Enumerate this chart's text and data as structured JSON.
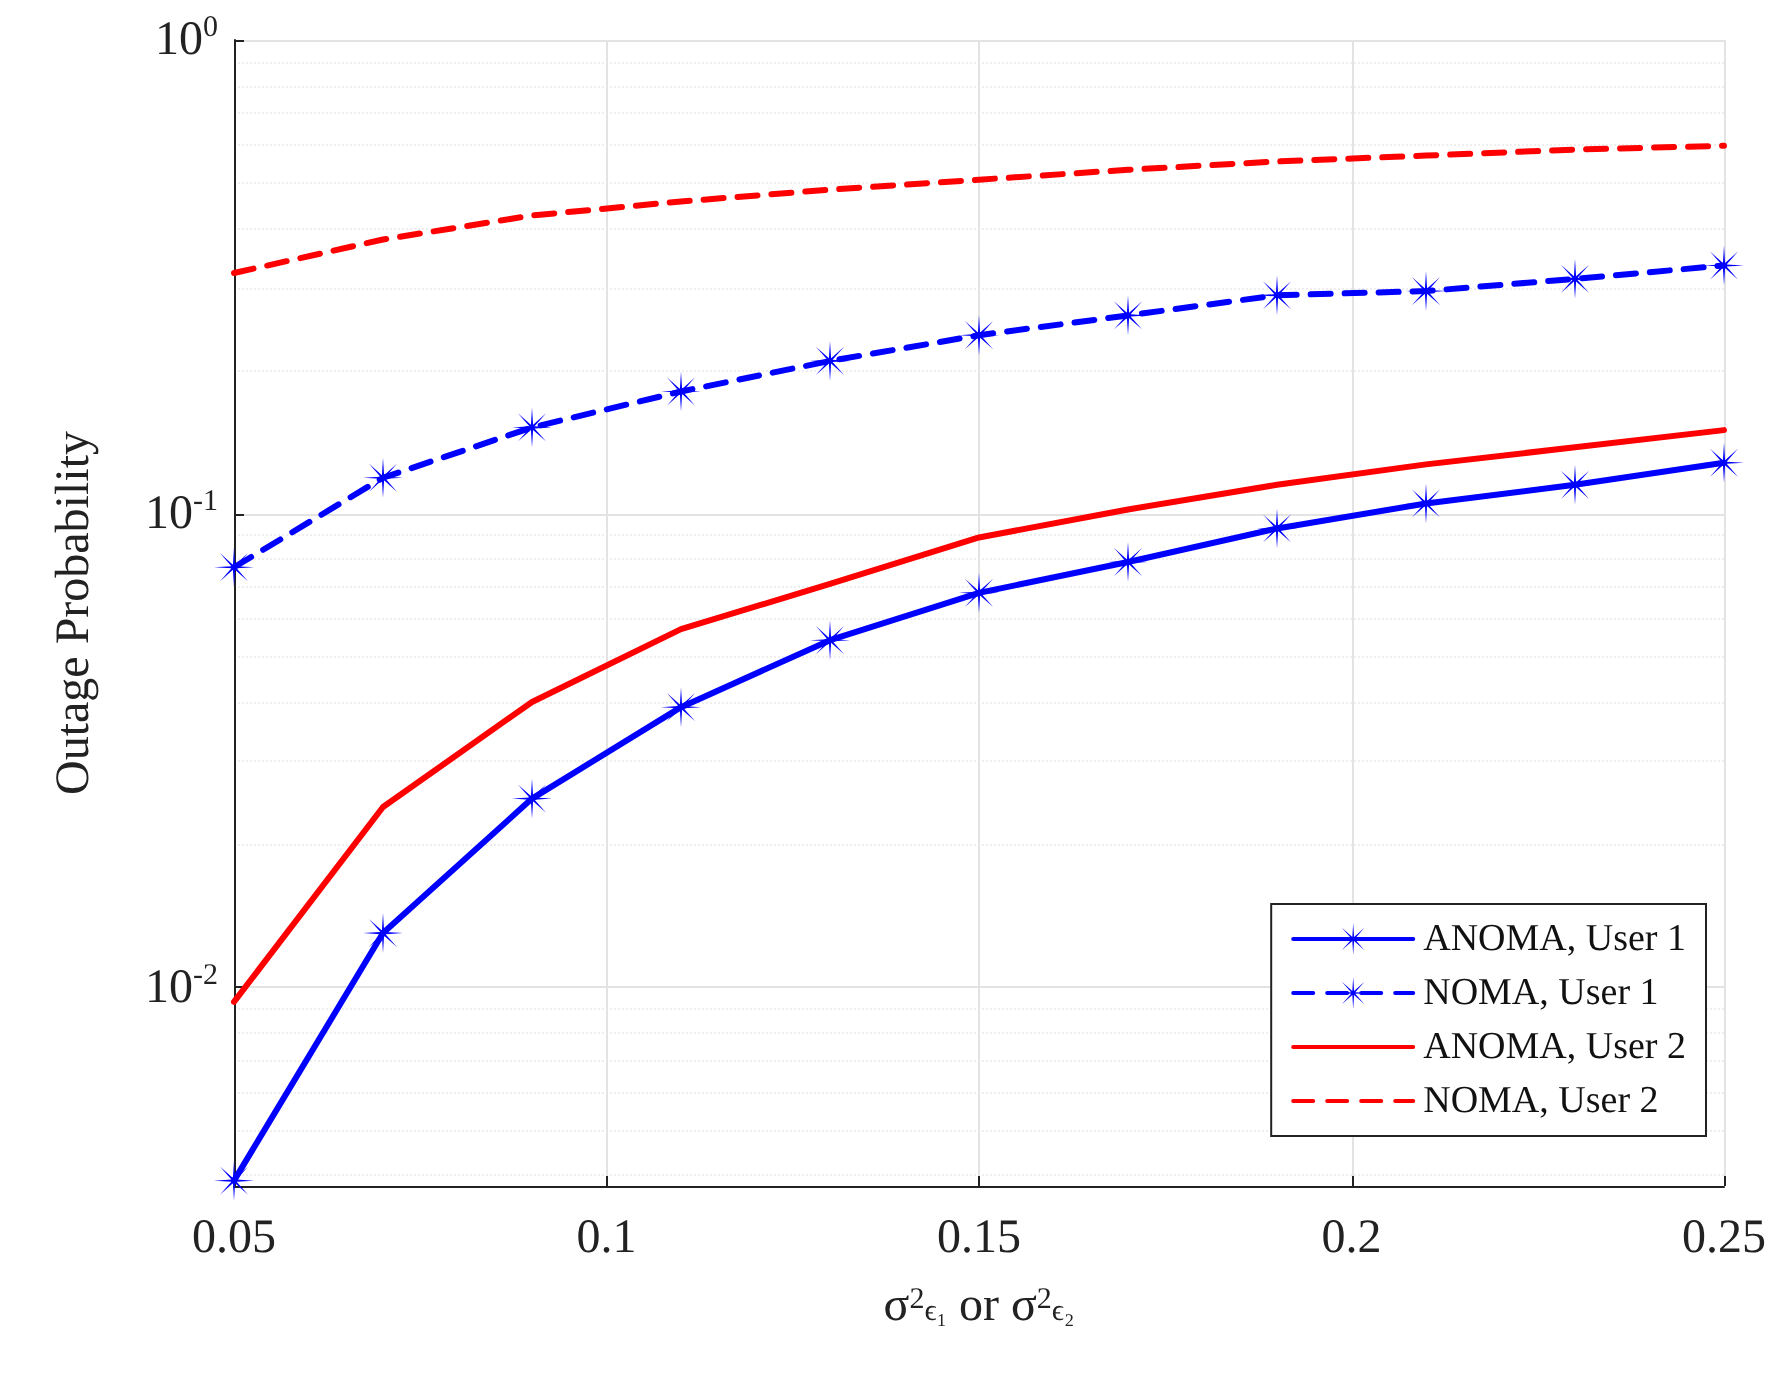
{
  "chart_data": {
    "type": "line",
    "xlabel": "σ$^{2}$$_{ϵ₁}$ or σ$^{2}$$_{ϵ₂}$",
    "ylabel": "Outage Probability",
    "x": [
      0.05,
      0.07,
      0.09,
      0.11,
      0.13,
      0.15,
      0.17,
      0.19,
      0.21,
      0.23,
      0.25
    ],
    "xlim": [
      0.05,
      0.25
    ],
    "xticks": [
      0.05,
      0.1,
      0.15,
      0.2,
      0.25
    ],
    "ylim": [
      0.0038,
      1
    ],
    "yticks": [
      {
        "value": 0.01,
        "label": "10$^{-2}$"
      },
      {
        "value": 0.1,
        "label": "10$^{-1}$"
      },
      {
        "value": 1,
        "label": "10$^{0}$"
      }
    ],
    "log": "y",
    "grid": true,
    "legend": "bottom right",
    "series": [
      {
        "name": "ANOMA, User 1",
        "color": "#0000ff",
        "marker": "star",
        "line_style": "solid",
        "values": [
          0.0039,
          0.013,
          0.025,
          0.039,
          0.054,
          0.068,
          0.079,
          0.093,
          0.105,
          0.115,
          0.128
        ]
      },
      {
        "name": "NOMA, User 1",
        "color": "#0000ff",
        "marker": "star",
        "line_style": "dashed",
        "values": [
          0.077,
          0.119,
          0.152,
          0.181,
          0.21,
          0.238,
          0.262,
          0.289,
          0.295,
          0.313,
          0.334
        ]
      },
      {
        "name": "ANOMA, User 2",
        "color": "#ff0000",
        "marker": "none",
        "line_style": "solid",
        "values": [
          0.0093,
          0.024,
          0.04,
          0.057,
          0.071,
          0.089,
          0.102,
          0.115,
          0.127,
          0.138,
          0.15
        ]
      },
      {
        "name": "NOMA, User 2",
        "color": "#ff0000",
        "marker": "none",
        "line_style": "dashed",
        "values": [
          0.322,
          0.379,
          0.426,
          0.456,
          0.483,
          0.507,
          0.532,
          0.554,
          0.57,
          0.587,
          0.598
        ]
      }
    ]
  }
}
